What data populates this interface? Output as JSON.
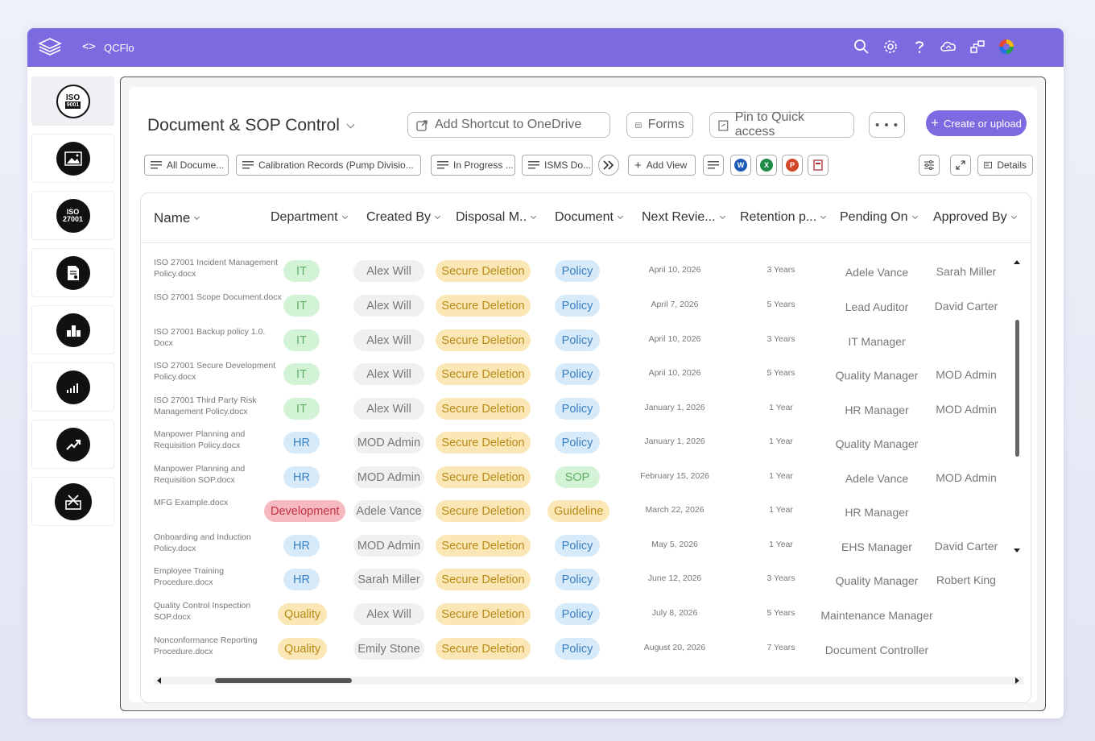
{
  "topbar": {
    "code_glyph": "<>",
    "app_name": "QCFlo",
    "icons": [
      "search-icon",
      "gear-icon",
      "help-icon",
      "cloud-sync-icon",
      "connections-icon",
      "brand-logo-icon"
    ]
  },
  "rail": {
    "items": [
      {
        "icon": "iso-9001-icon",
        "line1": "ISO",
        "line2": "9001"
      },
      {
        "icon": "image-icon",
        "line1": "",
        "line2": ""
      },
      {
        "icon": "iso-27001-icon",
        "line1": "ISO",
        "line2": "27001"
      },
      {
        "icon": "document-settings-icon",
        "line1": "",
        "line2": ""
      },
      {
        "icon": "bar-blocks-icon",
        "line1": "",
        "line2": ""
      },
      {
        "icon": "signal-chart-icon",
        "line1": "",
        "line2": ""
      },
      {
        "icon": "trend-up-icon",
        "line1": "",
        "line2": ""
      },
      {
        "icon": "tools-box-icon",
        "line1": "",
        "line2": ""
      }
    ]
  },
  "header": {
    "title": "Document & SOP Control",
    "add_shortcut": "Add Shortcut to OneDrive",
    "forms": "Forms",
    "pin": "Pin to Quick access",
    "more": "• • •",
    "create": "Create or upload"
  },
  "views": {
    "tabs": [
      "All Docume...",
      "Calibration Records (Pump Divisio...",
      "In Progress ...",
      "ISMS Do..."
    ],
    "add_view": "Add View",
    "apps": [
      {
        "label": "W",
        "color": "#1e5bb8"
      },
      {
        "label": "X",
        "color": "#1f8a45"
      },
      {
        "label": "P",
        "color": "#d24726"
      }
    ],
    "details": "Details"
  },
  "table": {
    "columns": [
      "Name",
      "Department",
      "Created By",
      "Disposal M..",
      "Document",
      "Next Revie...",
      "Retention p...",
      "Pending On",
      "Approved By"
    ],
    "rows": [
      {
        "name": "ISO 27001 Incident Management Policy.docx",
        "dept": "IT",
        "created": "Alex Will",
        "disposal": "Secure Deletion",
        "doc": "Policy",
        "review": "April 10, 2026",
        "retention": "3 Years",
        "pending": "Adele Vance",
        "approved": "Sarah Miller"
      },
      {
        "name": "ISO 27001 Scope Document.docx",
        "dept": "IT",
        "created": "Alex Will",
        "disposal": "Secure Deletion",
        "doc": "Policy",
        "review": "April 7, 2026",
        "retention": "5 Years",
        "pending": "Lead Auditor",
        "approved": "David Carter"
      },
      {
        "name": "ISO 27001 Backup policy 1.0. Docx",
        "dept": "IT",
        "created": "Alex Will",
        "disposal": "Secure Deletion",
        "doc": "Policy",
        "review": "April 10, 2026",
        "retention": "3 Years",
        "pending": "IT Manager",
        "approved": ""
      },
      {
        "name": "ISO 27001 Secure Development Policy.docx",
        "dept": "IT",
        "created": "Alex Will",
        "disposal": "Secure Deletion",
        "doc": "Policy",
        "review": "April 10, 2026",
        "retention": "5 Years",
        "pending": "Quality Manager",
        "approved": "MOD Admin"
      },
      {
        "name": "ISO 27001 Third Party Risk Management Policy.docx",
        "dept": "IT",
        "created": "Alex Will",
        "disposal": "Secure Deletion",
        "doc": "Policy",
        "review": "January 1, 2026",
        "retention": "1 Year",
        "pending": "HR Manager",
        "approved": "MOD Admin"
      },
      {
        "name": "Manpower Planning and Requisition Policy.docx",
        "dept": "HR",
        "created": "MOD Admin",
        "disposal": "Secure Deletion",
        "doc": "Policy",
        "review": "January 1, 2026",
        "retention": "1 Year",
        "pending": "Quality Manager",
        "approved": ""
      },
      {
        "name": "Manpower Planning and Requisition SOP.docx",
        "dept": "HR",
        "created": "MOD Admin",
        "disposal": "Secure Deletion",
        "doc": "SOP",
        "review": "February 15, 2026",
        "retention": "1 Year",
        "pending": "Adele Vance",
        "approved": "MOD Admin"
      },
      {
        "name": "MFG Example.docx",
        "dept": "Development",
        "created": "Adele Vance",
        "disposal": "Secure Deletion",
        "doc": "Guideline",
        "review": "March 22, 2026",
        "retention": "1 Year",
        "pending": "HR Manager",
        "approved": ""
      },
      {
        "name": "Onboarding and Induction Policy.docx",
        "dept": "HR",
        "created": "MOD Admin",
        "disposal": "Secure Deletion",
        "doc": "Policy",
        "review": "May 5, 2026",
        "retention": "1 Year",
        "pending": "EHS Manager",
        "approved": "David Carter"
      },
      {
        "name": "Employee Training Procedure.docx",
        "dept": "HR",
        "created": "Sarah Miller",
        "disposal": "Secure Deletion",
        "doc": "Policy",
        "review": "June 12, 2026",
        "retention": "3 Years",
        "pending": "Quality Manager",
        "approved": "Robert King"
      },
      {
        "name": "Quality Control Inspection SOP.docx",
        "dept": "Quality",
        "created": "Alex Will",
        "disposal": "Secure Deletion",
        "doc": "Policy",
        "review": "July 8, 2026",
        "retention": "5 Years",
        "pending": "Maintenance Manager",
        "approved": ""
      },
      {
        "name": "Nonconformance Reporting Procedure.docx",
        "dept": "Quality",
        "created": "Emily Stone",
        "disposal": "Secure Deletion",
        "doc": "Policy",
        "review": "August 20, 2026",
        "retention": "7 Years",
        "pending": "Document Controller",
        "approved": ""
      }
    ]
  }
}
